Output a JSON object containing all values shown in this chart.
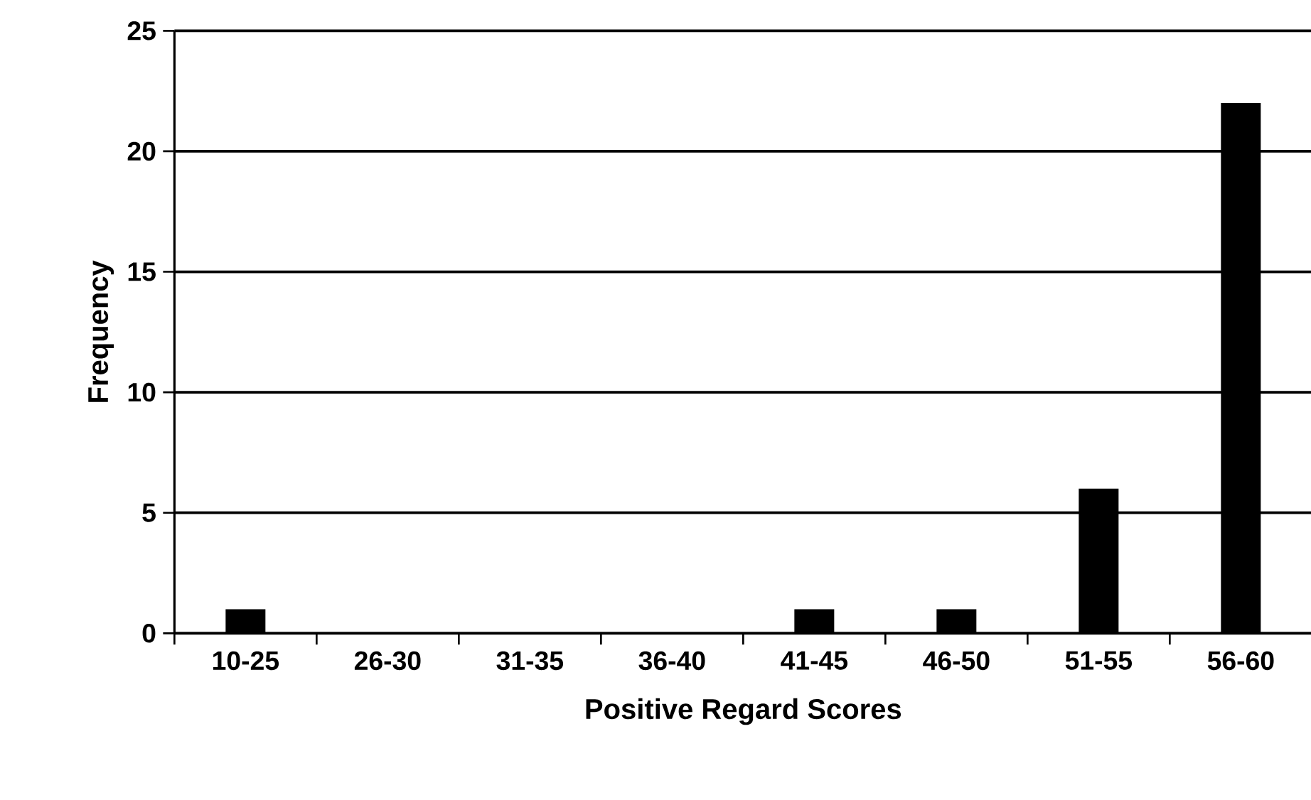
{
  "chart_data": {
    "type": "bar",
    "xlabel": "Positive Regard Scores",
    "ylabel": "Frequency",
    "categories": [
      "10-25",
      "26-30",
      "31-35",
      "36-40",
      "41-45",
      "46-50",
      "51-55",
      "56-60"
    ],
    "values": [
      1,
      0,
      0,
      0,
      1,
      1,
      6,
      22
    ],
    "color": "#000000",
    "ylim": [
      0,
      25
    ],
    "yticks": [
      0,
      5,
      10,
      15,
      20,
      25
    ],
    "grid": "y"
  }
}
